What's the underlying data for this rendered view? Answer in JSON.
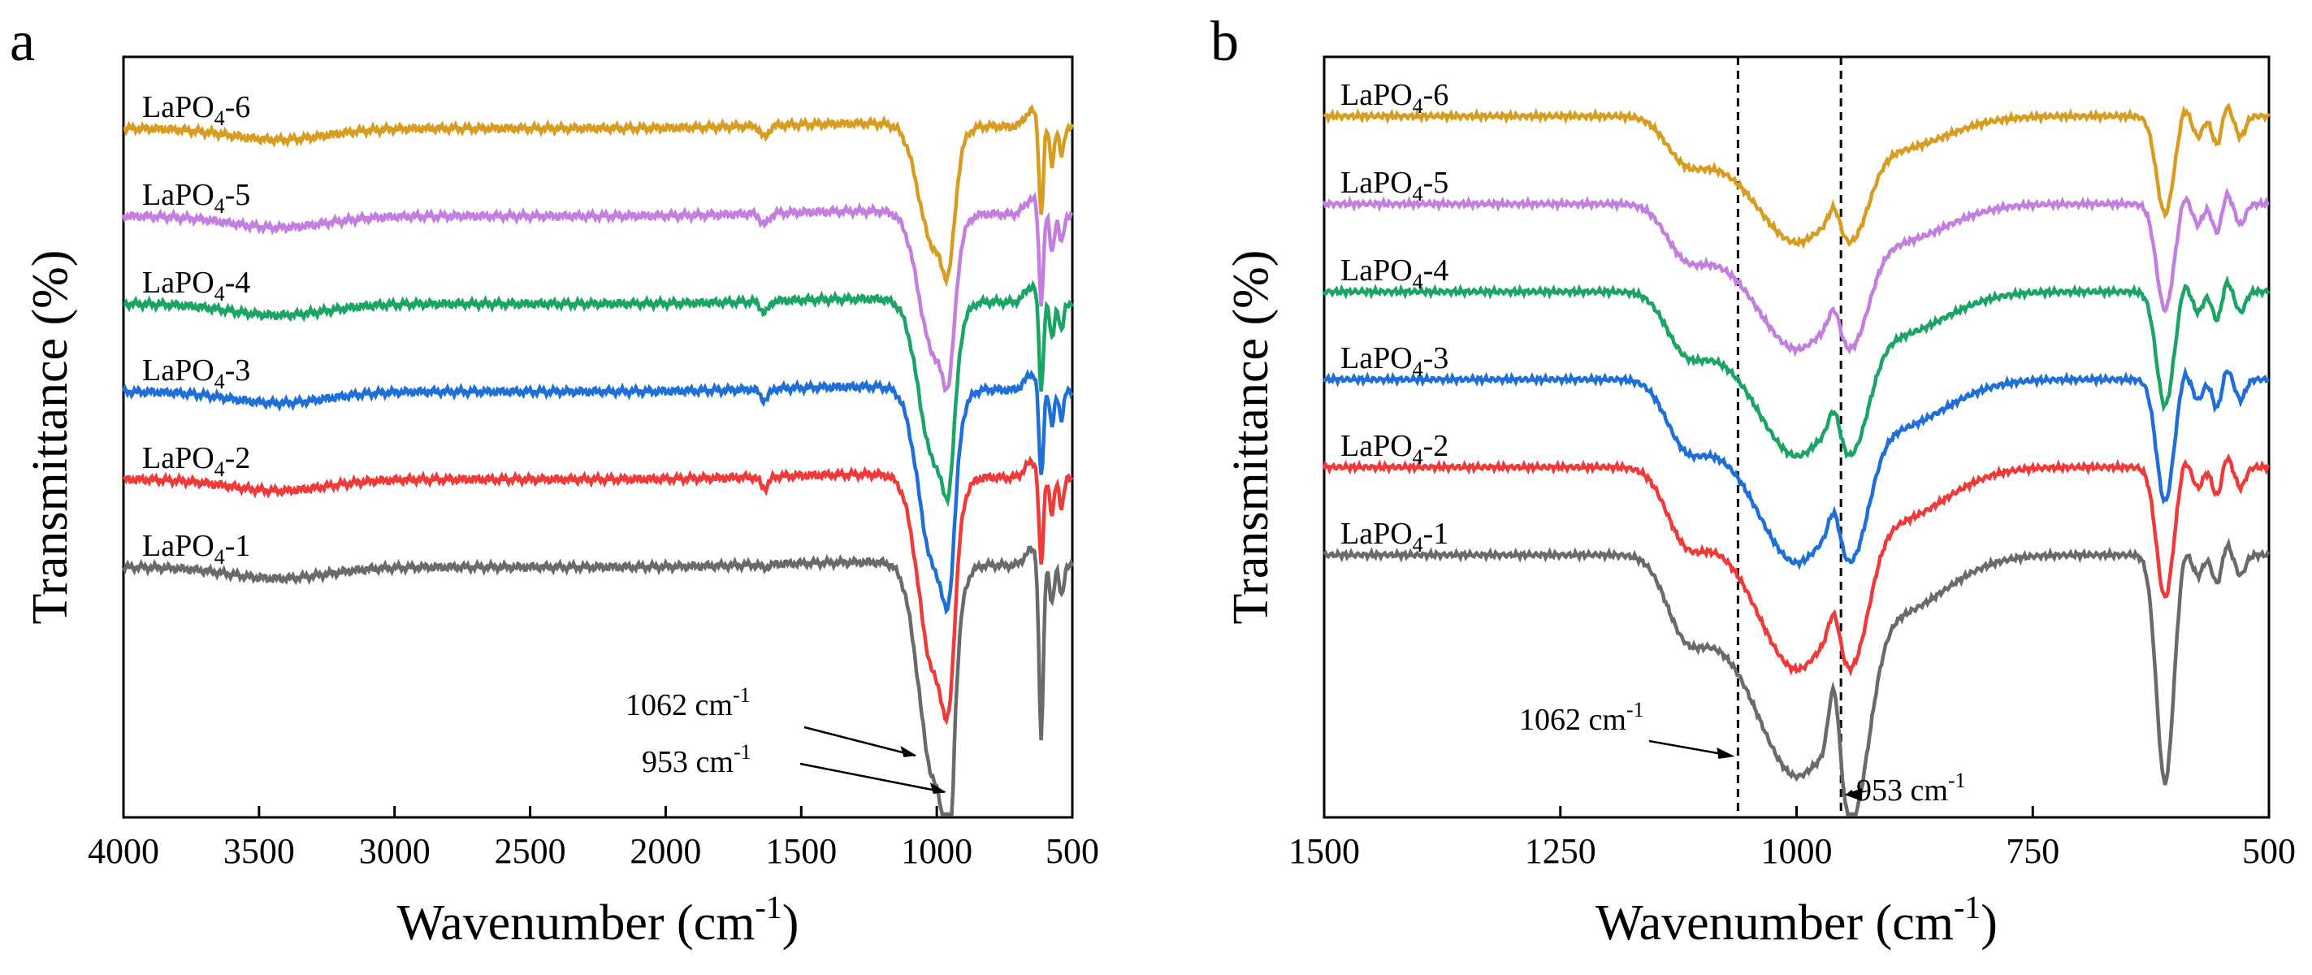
{
  "chart_data": [
    {
      "panel": "a",
      "type": "line",
      "xlabel": "Wavenumber (cm",
      "xlabel_sup": "-1",
      "xlabel_close": ")",
      "ylabel": "Transmittance (%)",
      "xlim": [
        4000,
        500
      ],
      "xticks": [
        4000,
        3500,
        3000,
        2500,
        2000,
        1500,
        1000,
        500
      ],
      "yticks_shown": false,
      "series": [
        {
          "name": "LaPO4-6",
          "label_base": "LaPO",
          "label_sub": "4",
          "label_suffix": "-6",
          "color": "#d89d20",
          "offset": 5
        },
        {
          "name": "LaPO4-5",
          "label_base": "LaPO",
          "label_sub": "4",
          "label_suffix": "-5",
          "color": "#c47ee0",
          "offset": 4
        },
        {
          "name": "LaPO4-4",
          "label_base": "LaPO",
          "label_sub": "4",
          "label_suffix": "-4",
          "color": "#1aa564",
          "offset": 3
        },
        {
          "name": "LaPO4-3",
          "label_base": "LaPO",
          "label_sub": "4",
          "label_suffix": "-3",
          "color": "#1f6fd8",
          "offset": 2
        },
        {
          "name": "LaPO4-2",
          "label_base": "LaPO",
          "label_sub": "4",
          "label_suffix": "-2",
          "color": "#f03a3a",
          "offset": 1
        },
        {
          "name": "LaPO4-1",
          "label_base": "LaPO",
          "label_sub": "4",
          "label_suffix": "-1",
          "color": "#6a6a6a",
          "offset": 0
        }
      ],
      "annotations": [
        {
          "text": "1062 cm",
          "sup": "-1",
          "x": 1062
        },
        {
          "text": "953 cm",
          "sup": "-1",
          "x": 953
        }
      ]
    },
    {
      "panel": "b",
      "type": "line",
      "xlabel": "Wavenumber (cm",
      "xlabel_sup": "-1",
      "xlabel_close": ")",
      "ylabel": "Transmittance (%)",
      "xlim": [
        1500,
        500
      ],
      "xticks": [
        1500,
        1250,
        1000,
        750,
        500
      ],
      "yticks_shown": false,
      "reference_lines": [
        1062,
        953
      ],
      "series": [
        {
          "name": "LaPO4-6",
          "label_base": "LaPO",
          "label_sub": "4",
          "label_suffix": "-6",
          "color": "#d89d20",
          "offset": 5
        },
        {
          "name": "LaPO4-5",
          "label_base": "LaPO",
          "label_sub": "4",
          "label_suffix": "-5",
          "color": "#c47ee0",
          "offset": 4
        },
        {
          "name": "LaPO4-4",
          "label_base": "LaPO",
          "label_sub": "4",
          "label_suffix": "-4",
          "color": "#1aa564",
          "offset": 3
        },
        {
          "name": "LaPO4-3",
          "label_base": "LaPO",
          "label_sub": "4",
          "label_suffix": "-3",
          "color": "#1f6fd8",
          "offset": 2
        },
        {
          "name": "LaPO4-2",
          "label_base": "LaPO",
          "label_sub": "4",
          "label_suffix": "-2",
          "color": "#f03a3a",
          "offset": 1
        },
        {
          "name": "LaPO4-1",
          "label_base": "LaPO",
          "label_sub": "4",
          "label_suffix": "-1",
          "color": "#6a6a6a",
          "offset": 0
        }
      ],
      "annotations": [
        {
          "text": "1062 cm",
          "sup": "-1",
          "x": 1062
        },
        {
          "text": "953 cm",
          "sup": "-1",
          "x": 953
        }
      ]
    }
  ]
}
